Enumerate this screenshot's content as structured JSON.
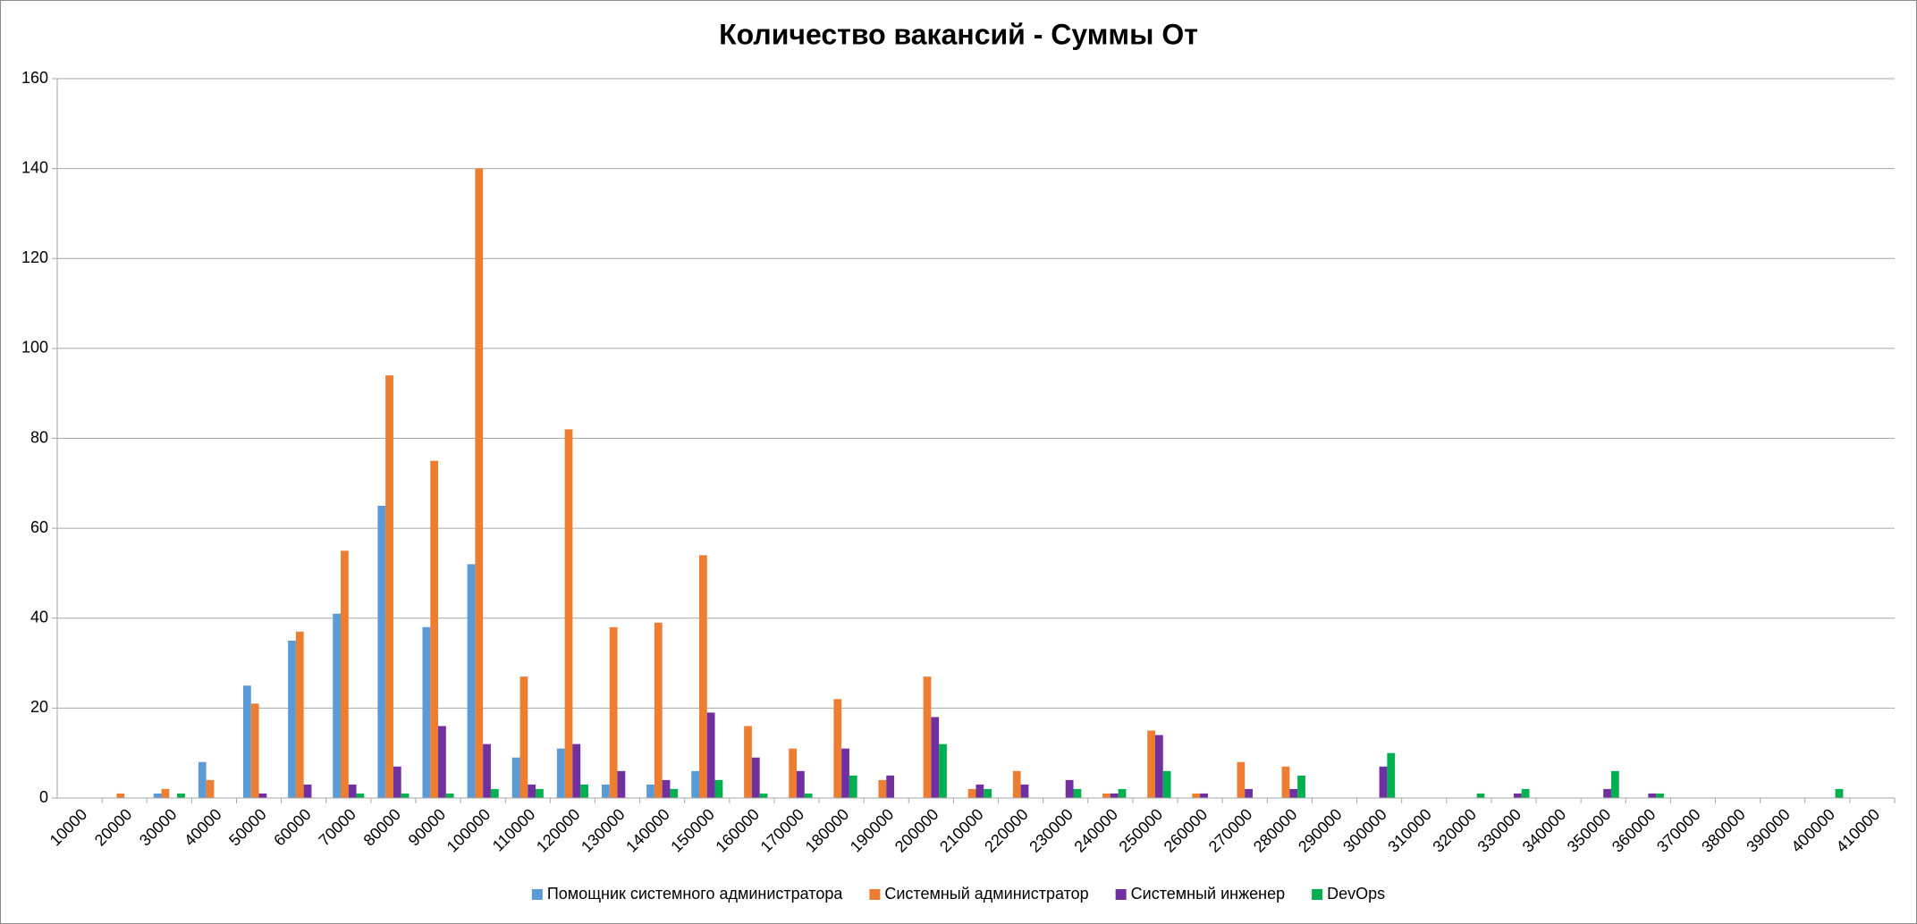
{
  "chart_data": {
    "type": "bar",
    "title": "Количество вакансий - Суммы От",
    "categories": [
      "10000",
      "20000",
      "30000",
      "40000",
      "50000",
      "60000",
      "70000",
      "80000",
      "90000",
      "100000",
      "110000",
      "120000",
      "130000",
      "140000",
      "150000",
      "160000",
      "170000",
      "180000",
      "190000",
      "200000",
      "210000",
      "220000",
      "230000",
      "240000",
      "250000",
      "260000",
      "270000",
      "280000",
      "290000",
      "300000",
      "310000",
      "320000",
      "330000",
      "340000",
      "350000",
      "360000",
      "370000",
      "380000",
      "390000",
      "400000",
      "410000"
    ],
    "series": [
      {
        "name": "Помощник системного администратора",
        "color": "#5b9bd5",
        "values": [
          0,
          0,
          1,
          8,
          25,
          35,
          41,
          65,
          38,
          52,
          9,
          11,
          3,
          3,
          6,
          0,
          0,
          0,
          0,
          0,
          0,
          0,
          0,
          0,
          0,
          0,
          0,
          0,
          0,
          0,
          0,
          0,
          0,
          0,
          0,
          0,
          0,
          0,
          0,
          0,
          0
        ]
      },
      {
        "name": "Системный администратор",
        "color": "#ed7d31",
        "values": [
          0,
          1,
          2,
          4,
          21,
          37,
          55,
          94,
          75,
          140,
          27,
          82,
          38,
          39,
          54,
          16,
          11,
          22,
          4,
          27,
          2,
          6,
          0,
          1,
          15,
          1,
          8,
          7,
          0,
          0,
          0,
          0,
          0,
          0,
          0,
          0,
          0,
          0,
          0,
          0,
          0
        ]
      },
      {
        "name": "Системный инженер",
        "color": "#7030a0",
        "values": [
          0,
          0,
          0,
          0,
          1,
          3,
          3,
          7,
          16,
          12,
          3,
          12,
          6,
          4,
          19,
          9,
          6,
          11,
          5,
          18,
          3,
          3,
          4,
          1,
          14,
          1,
          2,
          2,
          0,
          7,
          0,
          0,
          1,
          0,
          2,
          1,
          0,
          0,
          0,
          0,
          0
        ]
      },
      {
        "name": "DevOps",
        "color": "#00b050",
        "values": [
          0,
          0,
          1,
          0,
          0,
          0,
          1,
          1,
          1,
          2,
          2,
          3,
          0,
          2,
          4,
          1,
          1,
          5,
          0,
          12,
          2,
          0,
          2,
          2,
          6,
          0,
          0,
          5,
          0,
          10,
          0,
          1,
          2,
          0,
          6,
          1,
          0,
          0,
          0,
          2,
          0
        ]
      }
    ],
    "ylim": [
      0,
      160
    ],
    "yticks": [
      0,
      20,
      40,
      60,
      80,
      100,
      120,
      140,
      160
    ],
    "grid": true,
    "legend": "bottom"
  }
}
